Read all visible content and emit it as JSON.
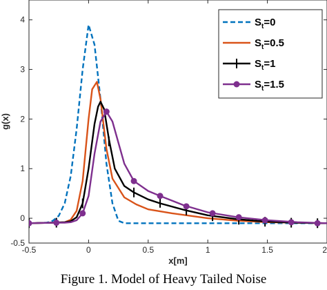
{
  "caption": "Figure 1. Model of Heavy Tailed Noise",
  "chart_data": {
    "type": "line",
    "xlabel": "x[m]",
    "ylabel": "g(x)",
    "xlim": [
      -0.5,
      2
    ],
    "ylim": [
      -0.5,
      4.4
    ],
    "xticks": [
      -0.5,
      0,
      0.5,
      1,
      1.5,
      2
    ],
    "yticks": [
      -0.5,
      0,
      1,
      2,
      3,
      4
    ],
    "xtick_labels": [
      "-0.5",
      "0",
      "0.5",
      "1",
      "1.5",
      "2"
    ],
    "ytick_labels": [
      "-0.5",
      "0",
      "1",
      "2",
      "3",
      "4"
    ],
    "grid": false,
    "legend_position": "top-right",
    "series": [
      {
        "name": "S_t=0",
        "legend_main": "S",
        "legend_sub": "t",
        "legend_tail": "=0",
        "color": "#0072BD",
        "style": "dashed",
        "marker": "none",
        "x": [
          -0.5,
          -0.35,
          -0.3,
          -0.25,
          -0.2,
          -0.15,
          -0.1,
          -0.05,
          0,
          0.05,
          0.1,
          0.15,
          0.2,
          0.25,
          0.3,
          0.4,
          0.5,
          1,
          1.5,
          2
        ],
        "y": [
          -0.1,
          -0.09,
          -0.05,
          0.05,
          0.3,
          0.85,
          1.8,
          3.0,
          3.9,
          3.5,
          2.4,
          1.1,
          0.3,
          -0.05,
          -0.1,
          -0.1,
          -0.1,
          -0.1,
          -0.1,
          -0.1
        ]
      },
      {
        "name": "S_t=0.5",
        "legend_main": "S",
        "legend_sub": "t",
        "legend_tail": "=0.5",
        "color": "#D95319",
        "style": "solid",
        "marker": "none",
        "x": [
          -0.5,
          -0.3,
          -0.2,
          -0.15,
          -0.1,
          -0.05,
          0,
          0.03,
          0.07,
          0.1,
          0.15,
          0.2,
          0.3,
          0.4,
          0.5,
          0.7,
          1,
          1.25,
          1.5,
          1.75,
          2
        ],
        "y": [
          -0.1,
          -0.09,
          -0.08,
          -0.03,
          0.15,
          0.75,
          2.0,
          2.6,
          2.75,
          2.4,
          1.4,
          0.8,
          0.42,
          0.28,
          0.18,
          0.1,
          0.0,
          -0.05,
          -0.08,
          -0.09,
          -0.1
        ]
      },
      {
        "name": "S_t=1",
        "legend_main": "S",
        "legend_sub": "t",
        "legend_tail": "=1",
        "color": "#000000",
        "style": "solid",
        "marker": "vbar",
        "x": [
          -0.5,
          -0.3,
          -0.2,
          -0.15,
          -0.1,
          -0.05,
          0,
          0.05,
          0.08,
          0.1,
          0.13,
          0.17,
          0.22,
          0.3,
          0.38,
          0.5,
          0.6,
          0.8,
          1,
          1.25,
          1.5,
          1.75,
          2
        ],
        "y": [
          -0.1,
          -0.09,
          -0.08,
          -0.06,
          0.02,
          0.3,
          1.0,
          1.9,
          2.25,
          2.35,
          2.2,
          1.6,
          1.0,
          0.65,
          0.52,
          0.38,
          0.3,
          0.17,
          0.06,
          -0.02,
          -0.07,
          -0.09,
          -0.1
        ],
        "markers_x": [
          -0.5,
          -0.27,
          -0.05,
          0.17,
          0.38,
          0.6,
          0.82,
          1.04,
          1.26,
          1.48,
          1.7,
          1.92
        ],
        "markers_y": [
          -0.1,
          -0.09,
          0.3,
          1.55,
          0.52,
          0.31,
          0.16,
          0.04,
          -0.03,
          -0.07,
          -0.09,
          -0.1
        ]
      },
      {
        "name": "S_t=1.5",
        "legend_main": "S",
        "legend_sub": "t",
        "legend_tail": "=1.5",
        "color": "#7E2F8E",
        "style": "solid",
        "marker": "circle",
        "x": [
          -0.5,
          -0.3,
          -0.2,
          -0.15,
          -0.1,
          -0.05,
          0,
          0.05,
          0.1,
          0.15,
          0.2,
          0.3,
          0.38,
          0.5,
          0.6,
          0.8,
          1,
          1.25,
          1.5,
          1.75,
          2
        ],
        "y": [
          -0.1,
          -0.09,
          -0.09,
          -0.08,
          -0.04,
          0.1,
          0.45,
          1.3,
          1.95,
          2.15,
          1.95,
          1.1,
          0.75,
          0.55,
          0.45,
          0.26,
          0.12,
          0.02,
          -0.04,
          -0.08,
          -0.1
        ],
        "markers_x": [
          -0.5,
          -0.27,
          -0.05,
          0.15,
          0.38,
          0.6,
          0.82,
          1.04,
          1.26,
          1.48,
          1.7,
          1.92
        ],
        "markers_y": [
          -0.1,
          -0.09,
          0.1,
          2.15,
          0.75,
          0.45,
          0.24,
          0.1,
          0.02,
          -0.04,
          -0.08,
          -0.1
        ]
      }
    ]
  }
}
